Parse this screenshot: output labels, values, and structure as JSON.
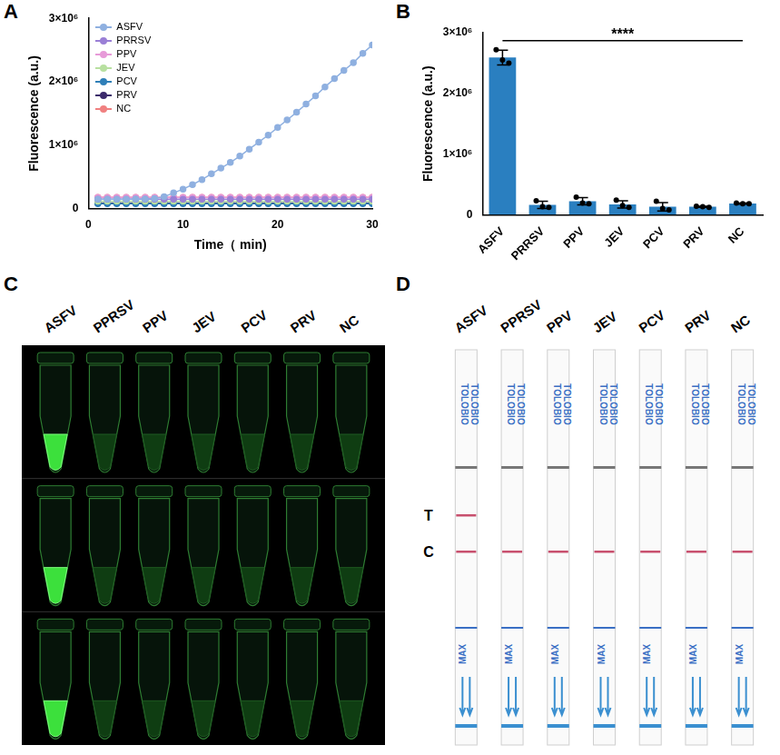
{
  "chart_data": [
    {
      "panel_label": "A",
      "type": "line",
      "xlabel": "Time（ min)",
      "ylabel": "Fluorescence (a.u.)",
      "x": [
        1,
        2,
        3,
        4,
        5,
        6,
        7,
        8,
        9,
        10,
        11,
        12,
        13,
        14,
        15,
        16,
        17,
        18,
        19,
        20,
        21,
        22,
        23,
        24,
        25,
        26,
        27,
        28,
        29,
        30
      ],
      "series": [
        {
          "name": "ASFV",
          "color": "#8fb0e0",
          "values": [
            150000,
            150000,
            152000,
            152000,
            155000,
            156000,
            160000,
            190000,
            250000,
            310000,
            380000,
            460000,
            550000,
            640000,
            730000,
            830000,
            940000,
            1050000,
            1160000,
            1280000,
            1400000,
            1520000,
            1650000,
            1780000,
            1920000,
            2050000,
            2180000,
            2300000,
            2450000,
            2580000
          ]
        },
        {
          "name": "PRRSV",
          "color": "#9a7fd6",
          "values": [
            150000,
            150000,
            150000,
            150000,
            150000,
            150000,
            150000,
            150000,
            150000,
            150000,
            150000,
            150000,
            150000,
            150000,
            150000,
            150000,
            150000,
            150000,
            150000,
            150000,
            150000,
            150000,
            150000,
            150000,
            150000,
            150000,
            150000,
            150000,
            150000,
            150000
          ]
        },
        {
          "name": "PPV",
          "color": "#e79ad8",
          "values": [
            180000,
            180000,
            180000,
            180000,
            180000,
            180000,
            180000,
            180000,
            180000,
            180000,
            180000,
            180000,
            180000,
            180000,
            180000,
            180000,
            180000,
            180000,
            180000,
            180000,
            180000,
            180000,
            180000,
            180000,
            180000,
            180000,
            180000,
            180000,
            180000,
            180000
          ]
        },
        {
          "name": "JEV",
          "color": "#b8e0a0",
          "values": [
            120000,
            120000,
            120000,
            120000,
            120000,
            120000,
            120000,
            120000,
            120000,
            120000,
            120000,
            120000,
            120000,
            120000,
            120000,
            120000,
            120000,
            120000,
            120000,
            120000,
            120000,
            120000,
            120000,
            120000,
            120000,
            120000,
            120000,
            120000,
            120000,
            120000
          ]
        },
        {
          "name": "PCV",
          "color": "#2f7fb8",
          "values": [
            80000,
            80000,
            80000,
            80000,
            80000,
            80000,
            80000,
            80000,
            80000,
            80000,
            80000,
            80000,
            80000,
            80000,
            80000,
            80000,
            80000,
            80000,
            80000,
            80000,
            80000,
            80000,
            80000,
            80000,
            80000,
            80000,
            80000,
            80000,
            80000,
            80000
          ]
        },
        {
          "name": "PRV",
          "color": "#3b2a6b",
          "values": [
            90000,
            90000,
            90000,
            90000,
            90000,
            90000,
            90000,
            90000,
            90000,
            90000,
            90000,
            90000,
            90000,
            90000,
            90000,
            90000,
            90000,
            90000,
            90000,
            90000,
            90000,
            90000,
            90000,
            90000,
            90000,
            90000,
            90000,
            90000,
            90000,
            90000
          ]
        },
        {
          "name": "NC",
          "color": "#f08080",
          "values": [
            180000,
            180000,
            180000,
            180000,
            180000,
            180000,
            180000,
            180000,
            180000,
            180000,
            180000,
            180000,
            180000,
            180000,
            180000,
            180000,
            180000,
            180000,
            180000,
            180000,
            180000,
            180000,
            180000,
            180000,
            180000,
            180000,
            180000,
            180000,
            180000,
            180000
          ]
        }
      ],
      "xlim": [
        0,
        30
      ],
      "xticks": [
        0,
        10,
        20,
        30
      ],
      "ylim": [
        0,
        3000000
      ],
      "yticks": [
        0,
        {
          "value": 1000000,
          "label": "1×10⁶"
        },
        {
          "value": 2000000,
          "label": "2×10⁶"
        },
        {
          "value": 3000000,
          "label": "3×10⁶"
        }
      ],
      "marker": "circle",
      "grid": false,
      "legend": "upper left"
    },
    {
      "panel_label": "B",
      "type": "bar",
      "ylabel": "Fluorescence (a.u.)",
      "categories": [
        "ASFV",
        "PRRSV",
        "PPV",
        "JEV",
        "PCV",
        "PRV",
        "NC"
      ],
      "values": [
        2590000,
        160000,
        220000,
        170000,
        130000,
        130000,
        183000
      ],
      "errors": [
        120000,
        60000,
        60000,
        60000,
        70000,
        10000,
        10000
      ],
      "points": [
        [
          2720000,
          2550000,
          2500000
        ],
        [
          230000,
          130000,
          120000
        ],
        [
          290000,
          190000,
          180000
        ],
        [
          240000,
          150000,
          120000
        ],
        [
          220000,
          100000,
          80000
        ],
        [
          140000,
          130000,
          120000
        ],
        [
          190000,
          180000,
          180000
        ]
      ],
      "color": "#2a7fc0",
      "ylim": [
        0,
        3000000
      ],
      "yticks": [
        0,
        {
          "value": 1000000,
          "label": "1×10⁶"
        },
        {
          "value": 2000000,
          "label": "2×10⁶"
        },
        {
          "value": 3000000,
          "label": "3×10⁶"
        }
      ],
      "annotations": [
        {
          "text": "****",
          "from": "ASFV",
          "to": "NC"
        }
      ],
      "grid": false
    }
  ],
  "panels": [
    {
      "panel_label": "C",
      "type": "photo",
      "labels": [
        "ASFV",
        "PPRSV",
        "PPV",
        "JEV",
        "PCV",
        "PRV",
        "NC"
      ],
      "replicates": 3,
      "positive": [
        "ASFV"
      ]
    },
    {
      "panel_label": "D",
      "type": "test_strips",
      "labels": [
        "ASFV",
        "PPRSV",
        "PPV",
        "JEV",
        "PCV",
        "PRV",
        "NC"
      ],
      "brand": "TOLOBIO",
      "flow_mark": "MAX",
      "line_labels": [
        "T",
        "C"
      ],
      "positive": [
        "ASFV"
      ]
    }
  ]
}
